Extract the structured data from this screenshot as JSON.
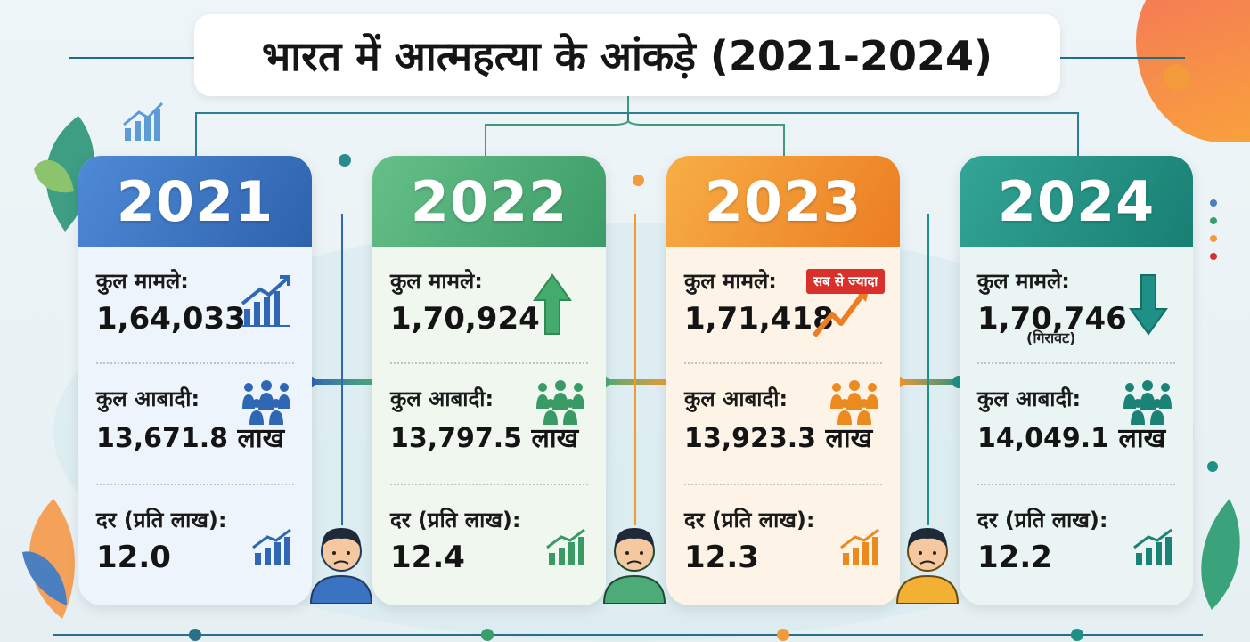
{
  "title": "भारत में आत्महत्या के आंकड़े (2021-2024)",
  "labels": {
    "cases": "कुल मामले:",
    "population": "कुल आबादी:",
    "rate": "दर (प्रति लाख):"
  },
  "years": [
    {
      "year": "2021",
      "cases": "1,64,033",
      "population": "13,671.8 लाख",
      "rate": "12.0",
      "color": "#3a73c2",
      "icon_color": "#2f67b5",
      "trend_icon": "bar-chart-rising-icon"
    },
    {
      "year": "2022",
      "cases": "1,70,924",
      "population": "13,797.5 लाख",
      "rate": "12.4",
      "color": "#4dab78",
      "icon_color": "#3a9a66",
      "trend_icon": "arrow-up-icon"
    },
    {
      "year": "2023",
      "cases": "1,71,418",
      "population": "13,923.3 लाख",
      "rate": "12.3",
      "color": "#f29a33",
      "icon_color": "#ec8a22",
      "trend_icon": "zigzag-rising-icon",
      "badge": "सब से ज्यादा"
    },
    {
      "year": "2024",
      "cases": "1,70,746",
      "population": "14,049.1 लाख",
      "rate": "12.2",
      "color": "#1f9085",
      "icon_color": "#1b8276",
      "trend_icon": "arrow-down-icon",
      "note": "(गिरावट)"
    }
  ]
}
